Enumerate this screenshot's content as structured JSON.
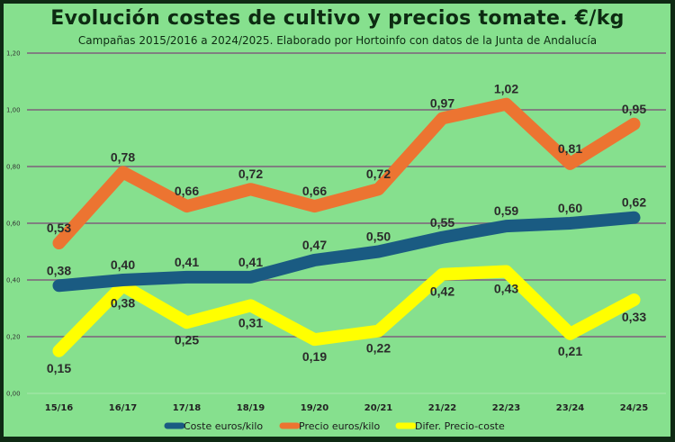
{
  "chart_data": {
    "type": "line",
    "title": "Evolución costes de cultivo y precios tomate. €/kg",
    "subtitle": "Campañas 2015/2016 a 2024/2025. Elaborado por Hortoinfo con datos de la Junta de Andalucía",
    "xlabel": "",
    "ylabel": "",
    "ylim": [
      0,
      1.2
    ],
    "yticks": [
      "0,00",
      "0,20",
      "0,40",
      "0,60",
      "0,80",
      "1,00",
      "1,20"
    ],
    "ytick_values": [
      0,
      0.2,
      0.4,
      0.6,
      0.8,
      1.0,
      1.2
    ],
    "grid": true,
    "legend_position": "bottom",
    "categories": [
      "15/16",
      "16/17",
      "17/18",
      "18/19",
      "19/20",
      "20/21",
      "21/22",
      "22/23",
      "23/24",
      "24/25"
    ],
    "series": [
      {
        "name": "Coste euros/kilo",
        "color": "#1a5b82",
        "label_position": "above",
        "values": [
          0.38,
          0.4,
          0.41,
          0.41,
          0.47,
          0.5,
          0.55,
          0.59,
          0.6,
          0.62
        ],
        "labels": [
          "0,38",
          "0,40",
          "0,41",
          "0,41",
          "0,47",
          "0,50",
          "0,55",
          "0,59",
          "0,60",
          "0,62"
        ]
      },
      {
        "name": "Precio euros/kilo",
        "color": "#ec7431",
        "label_position": "above",
        "values": [
          0.53,
          0.78,
          0.66,
          0.72,
          0.66,
          0.72,
          0.97,
          1.02,
          0.81,
          0.95
        ],
        "labels": [
          "0,53",
          "0,78",
          "0,66",
          "0,72",
          "0,66",
          "0,72",
          "0,97",
          "1,02",
          "0,81",
          "0,95"
        ]
      },
      {
        "name": "Difer. Precio-coste",
        "color": "#ffff00",
        "label_position": "below",
        "values": [
          0.15,
          0.38,
          0.25,
          0.31,
          0.19,
          0.22,
          0.42,
          0.43,
          0.21,
          0.33
        ],
        "labels": [
          "0,15",
          "0,38",
          "0,25",
          "0,31",
          "0,19",
          "0,22",
          "0,42",
          "0,43",
          "0,21",
          "0,33"
        ]
      }
    ]
  }
}
